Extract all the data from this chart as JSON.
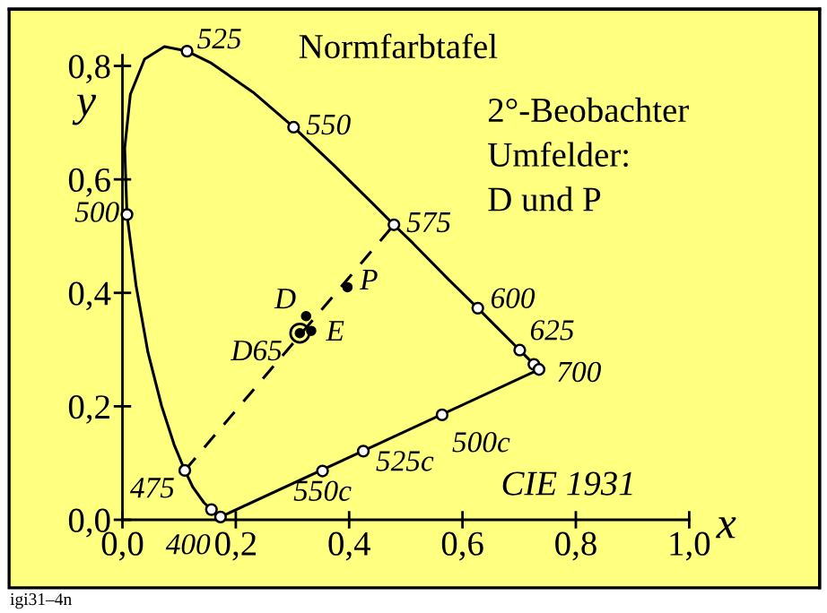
{
  "chart_data": {
    "type": "line",
    "title": "Normfarbtafel",
    "xlabel": "x",
    "ylabel": "y",
    "xlim": [
      -0.2,
      1.23
    ],
    "ylim": [
      -0.12,
      0.9
    ],
    "xticks": [
      {
        "value": 0,
        "label": "0,0"
      },
      {
        "value": 0.2,
        "label": "0,2"
      },
      {
        "value": 0.4,
        "label": "0,4"
      },
      {
        "value": 0.6,
        "label": "0,6"
      },
      {
        "value": 0.8,
        "label": "0,8"
      },
      {
        "value": 1.0,
        "label": "1,0"
      }
    ],
    "yticks": [
      {
        "value": 0,
        "label": "0,0"
      },
      {
        "value": 0.2,
        "label": "0,2"
      },
      {
        "value": 0.4,
        "label": "0,4"
      },
      {
        "value": 0.6,
        "label": "0,6"
      },
      {
        "value": 0.8,
        "label": "0,8"
      }
    ],
    "grid": false,
    "legend": false,
    "series": [
      {
        "color": "#000000",
        "line_style": "solid",
        "marker": "none",
        "x": [
          0.174,
          0.173,
          0.171,
          0.164,
          0.157,
          0.144,
          0.124,
          0.11,
          0.091,
          0.069,
          0.045,
          0.024,
          0.008,
          0.004,
          0.014,
          0.039,
          0.074,
          0.114,
          0.155,
          0.23,
          0.302,
          0.373,
          0.444,
          0.479,
          0.513,
          0.575,
          0.627,
          0.666,
          0.692,
          0.701,
          0.708,
          0.719,
          0.726,
          0.735
        ],
        "values": [
          0.005,
          0.005,
          0.005,
          0.011,
          0.018,
          0.03,
          0.058,
          0.087,
          0.133,
          0.201,
          0.295,
          0.413,
          0.538,
          0.655,
          0.75,
          0.812,
          0.834,
          0.826,
          0.806,
          0.754,
          0.692,
          0.625,
          0.555,
          0.52,
          0.487,
          0.424,
          0.373,
          0.334,
          0.308,
          0.299,
          0.292,
          0.281,
          0.274,
          0.265
        ]
      },
      {
        "color": "#000000",
        "line_style": "solid",
        "marker": "none",
        "x": [
          0.173,
          0.735
        ],
        "values": [
          0.005,
          0.265
        ]
      },
      {
        "color": "#000000",
        "line_style": "dashed",
        "marker": "none",
        "x": [
          0.11,
          0.479
        ],
        "values": [
          0.087,
          0.52
        ]
      },
      {
        "type": "scatter",
        "color": "#ffffff",
        "marker": "circle",
        "x": [
          0.173,
          0.157,
          0.11,
          0.008,
          0.114,
          0.302,
          0.479,
          0.627,
          0.701,
          0.726,
          0.735,
          0.353,
          0.425,
          0.564
        ],
        "values": [
          0.005,
          0.018,
          0.087,
          0.538,
          0.826,
          0.692,
          0.52,
          0.373,
          0.299,
          0.274,
          0.265,
          0.086,
          0.121,
          0.185
        ]
      },
      {
        "type": "scatter",
        "color": "#000000",
        "marker": "circle",
        "x": [
          0.313,
          0.324,
          0.333,
          0.397
        ],
        "values": [
          0.329,
          0.359,
          0.333,
          0.41
        ]
      }
    ],
    "annotations": [
      {
        "text": "400",
        "x": 0.173,
        "y": 0.005
      },
      {
        "text": "475",
        "x": 0.11,
        "y": 0.087
      },
      {
        "text": "500",
        "x": 0.008,
        "y": 0.538
      },
      {
        "text": "525",
        "x": 0.114,
        "y": 0.826
      },
      {
        "text": "550",
        "x": 0.302,
        "y": 0.692
      },
      {
        "text": "575",
        "x": 0.479,
        "y": 0.52
      },
      {
        "text": "600",
        "x": 0.627,
        "y": 0.373
      },
      {
        "text": "625",
        "x": 0.701,
        "y": 0.299
      },
      {
        "text": "700",
        "x": 0.735,
        "y": 0.265
      },
      {
        "text": "550c",
        "x": 0.353,
        "y": 0.086
      },
      {
        "text": "525c",
        "x": 0.425,
        "y": 0.121
      },
      {
        "text": "500c",
        "x": 0.564,
        "y": 0.185
      },
      {
        "text": "D65",
        "x": 0.313,
        "y": 0.329
      },
      {
        "text": "D",
        "x": 0.324,
        "y": 0.359
      },
      {
        "text": "E",
        "x": 0.333,
        "y": 0.333
      },
      {
        "text": "P",
        "x": 0.397,
        "y": 0.41
      },
      "2°-Beobachter",
      "Umfelder:",
      "D und P",
      "CIE 1931",
      "igi31–4n"
    ]
  }
}
